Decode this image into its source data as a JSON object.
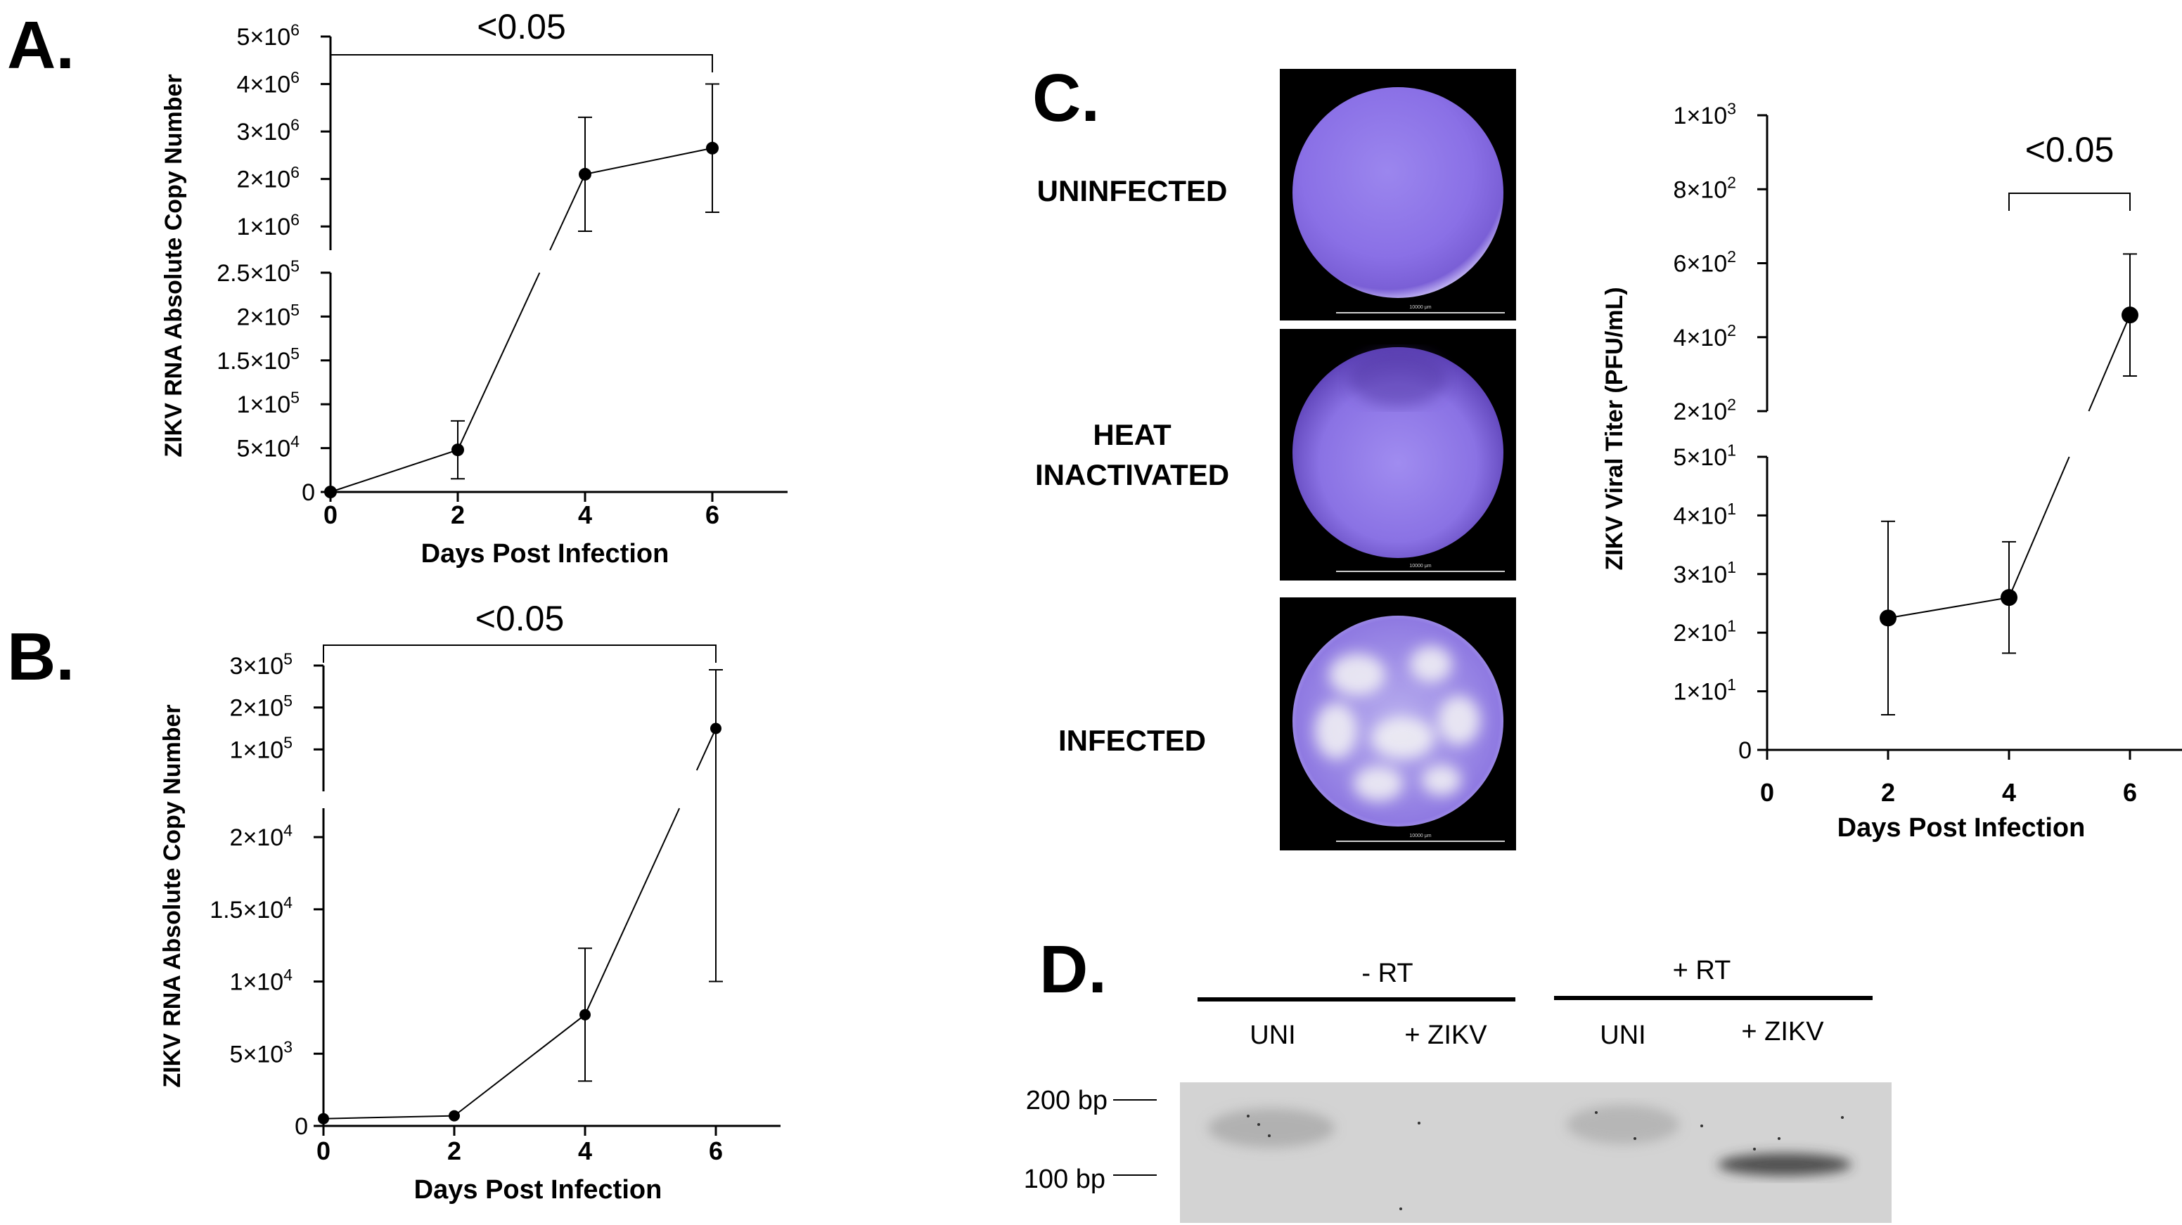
{
  "panels": {
    "a": "A.",
    "b": "B.",
    "c": "C.",
    "d": "D."
  },
  "colors": {
    "line": "#000000",
    "stain": "#7d5ee6",
    "gel": "#d3d3d3",
    "background": "#ffffff"
  },
  "chart_data": [
    {
      "panel": "A",
      "type": "line",
      "ylabel": "ZIKV RNA Absolute Copy Number",
      "xlabel": "Days Post Infection",
      "x": [
        0,
        2,
        4,
        6
      ],
      "values": [
        0,
        48000,
        2100000,
        2650000
      ],
      "error": [
        0,
        33000,
        1200000,
        1350000
      ],
      "xticks": [
        "0",
        "2",
        "4",
        "6"
      ],
      "xlim": [
        0,
        7
      ],
      "y_segments": [
        {
          "range": [
            0,
            250000
          ],
          "ticks": [
            0,
            50000,
            100000,
            150000,
            200000,
            250000
          ],
          "tick_labels": [
            [
              "0",
              ""
            ],
            [
              "5×10",
              "4"
            ],
            [
              "1×10",
              "5"
            ],
            [
              "1.5×10",
              "5"
            ],
            [
              "2×10",
              "5"
            ],
            [
              "2.5×10",
              "5"
            ]
          ]
        },
        {
          "range": [
            500000,
            5000000
          ],
          "ticks": [
            1000000,
            2000000,
            3000000,
            4000000,
            5000000
          ],
          "tick_labels": [
            [
              "1×10",
              "6"
            ],
            [
              "2×10",
              "6"
            ],
            [
              "3×10",
              "6"
            ],
            [
              "4×10",
              "6"
            ],
            [
              "5×10",
              "6"
            ]
          ]
        }
      ],
      "significance": {
        "label": "<0.05",
        "from": 0,
        "to": 6
      }
    },
    {
      "panel": "B",
      "type": "line",
      "ylabel": "ZIKV RNA Absolute Copy Number",
      "xlabel": "Days Post Infection",
      "x": [
        0,
        2,
        4,
        6
      ],
      "values": [
        500,
        700,
        7700,
        150000
      ],
      "error": [
        0,
        0,
        4600,
        140000
      ],
      "xticks": [
        "0",
        "2",
        "4",
        "6"
      ],
      "xlim": [
        0,
        7
      ],
      "y_segments": [
        {
          "range": [
            0,
            22000
          ],
          "ticks": [
            0,
            5000,
            10000,
            15000,
            20000
          ],
          "tick_labels": [
            [
              "0",
              ""
            ],
            [
              "5×10",
              "3"
            ],
            [
              "1×10",
              "4"
            ],
            [
              "1.5×10",
              "4"
            ],
            [
              "2×10",
              "4"
            ]
          ]
        },
        {
          "range": [
            0,
            300000
          ],
          "ticks": [
            100000,
            200000,
            300000
          ],
          "tick_labels": [
            [
              "1×10",
              "5"
            ],
            [
              "2×10",
              "5"
            ],
            [
              "3×10",
              "5"
            ]
          ]
        }
      ],
      "significance": {
        "label": "<0.05",
        "from": 0,
        "to": 6
      }
    },
    {
      "panel": "C",
      "type": "line",
      "ylabel": "ZIKV Viral Titer (PFU/mL)",
      "xlabel": "Days Post Infection",
      "x": [
        2,
        4,
        6
      ],
      "values": [
        22.5,
        26,
        460
      ],
      "error": [
        16.5,
        9.5,
        165
      ],
      "xticks": [
        "0",
        "2",
        "4",
        "6"
      ],
      "xlim": [
        0,
        7
      ],
      "y_segments": [
        {
          "range": [
            0,
            50
          ],
          "ticks": [
            0,
            10,
            20,
            30,
            40,
            50
          ],
          "tick_labels": [
            [
              "0",
              ""
            ],
            [
              "1×10",
              "1"
            ],
            [
              "2×10",
              "1"
            ],
            [
              "3×10",
              "1"
            ],
            [
              "4×10",
              "1"
            ],
            [
              "5×10",
              "1"
            ]
          ]
        },
        {
          "range": [
            200,
            1000
          ],
          "ticks": [
            200,
            400,
            600,
            800,
            1000
          ],
          "tick_labels": [
            [
              "2×10",
              "2"
            ],
            [
              "4×10",
              "2"
            ],
            [
              "6×10",
              "2"
            ],
            [
              "8×10",
              "2"
            ],
            [
              "1×10",
              "3"
            ]
          ]
        }
      ],
      "significance": {
        "label": "<0.05",
        "from": 4,
        "to": 6
      }
    }
  ],
  "plaque_assay": {
    "labels": {
      "uninfected": "UNINFECTED",
      "heat": "HEAT",
      "inactivated": "INACTIVATED",
      "infected": "INFECTED"
    },
    "scale_bars": [
      "10000 μm",
      "10000 μm",
      "10000 μm"
    ]
  },
  "gel": {
    "groups": [
      "- RT",
      "+ RT"
    ],
    "lanes": [
      "UNI",
      "+ ZIKV",
      "UNI",
      "+ ZIKV"
    ],
    "markers": [
      "200 bp",
      "100 bp"
    ]
  }
}
